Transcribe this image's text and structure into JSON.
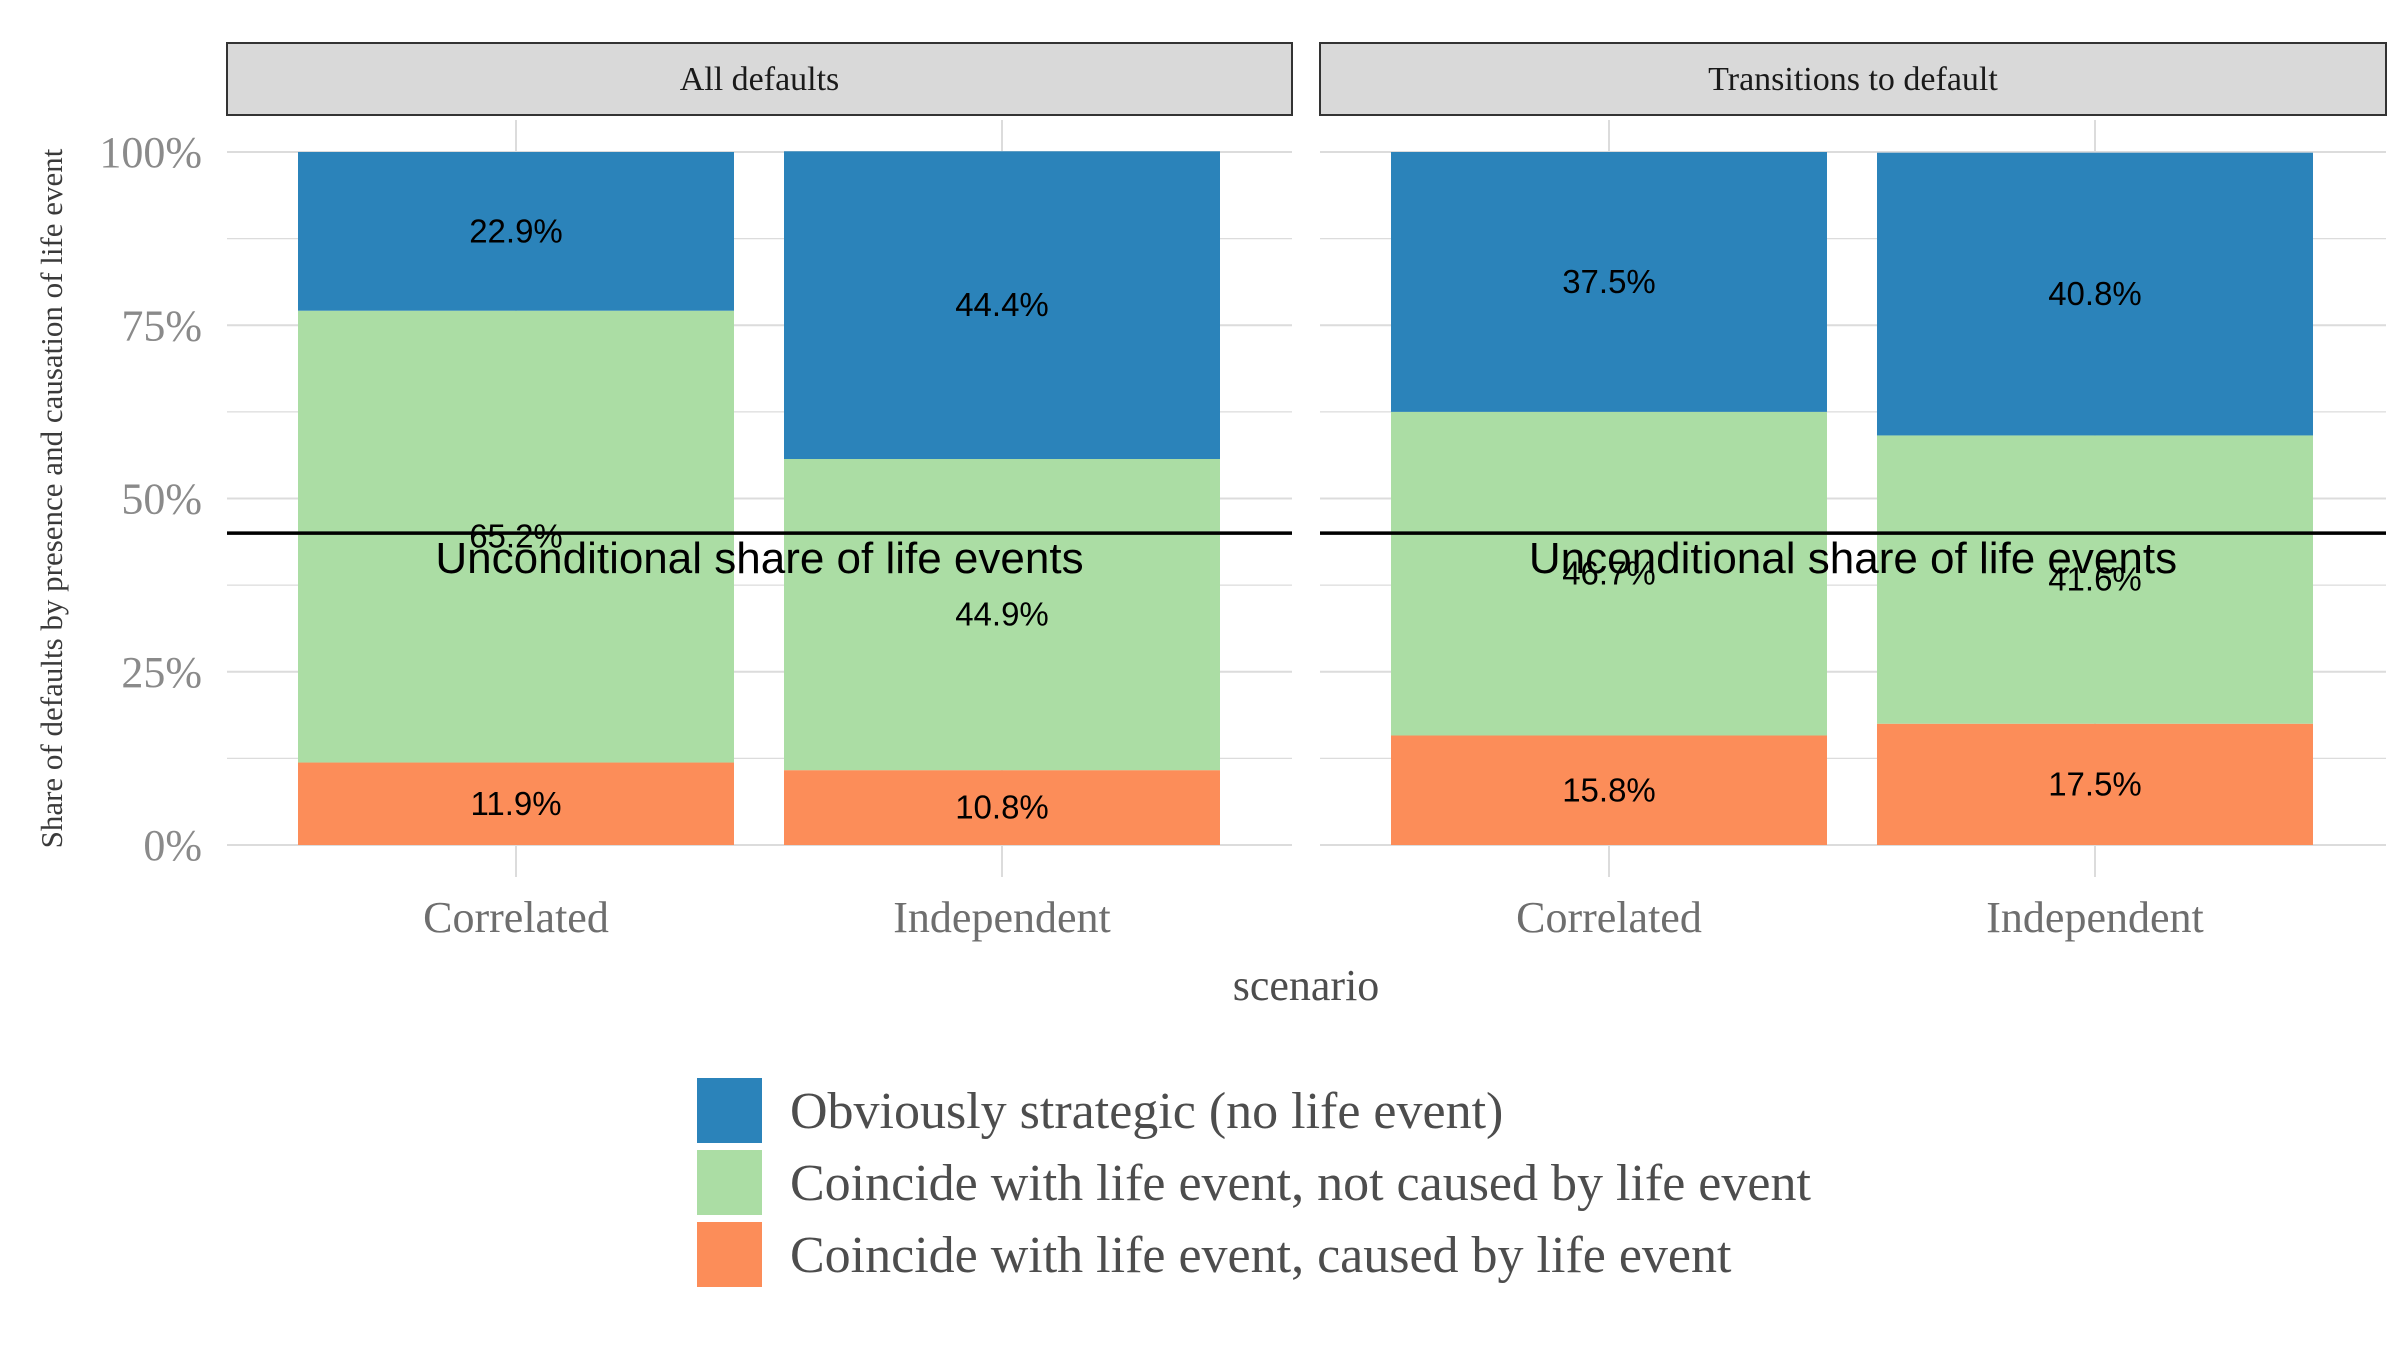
{
  "chart_data": {
    "type": "bar",
    "stacked": true,
    "facets": [
      "All defaults",
      "Transitions to default"
    ],
    "categories": [
      "Correlated",
      "Independent"
    ],
    "xlabel": "scenario",
    "ylabel": "Share of defaults by presence and causation of life event",
    "ylim": [
      0,
      1
    ],
    "yticks": [
      "0%",
      "25%",
      "50%",
      "75%",
      "100%"
    ],
    "series": [
      {
        "name": "Coincide with life event, caused by life event",
        "color": "#fc8d59",
        "values": {
          "All defaults": [
            0.119,
            0.108
          ],
          "Transitions to default": [
            0.158,
            0.175
          ]
        },
        "labels": {
          "All defaults": [
            "11.9%",
            "10.8%"
          ],
          "Transitions to default": [
            "15.8%",
            "17.5%"
          ]
        }
      },
      {
        "name": "Coincide with life event, not caused by life event",
        "color": "#abdda4",
        "values": {
          "All defaults": [
            0.652,
            0.449
          ],
          "Transitions to default": [
            0.467,
            0.416
          ]
        },
        "labels": {
          "All defaults": [
            "65.2%",
            "44.9%"
          ],
          "Transitions to default": [
            "46.7%",
            "41.6%"
          ]
        }
      },
      {
        "name": "Obviously strategic (no life event)",
        "color": "#2b83ba",
        "values": {
          "All defaults": [
            0.229,
            0.444
          ],
          "Transitions to default": [
            0.375,
            0.408
          ]
        },
        "labels": {
          "All defaults": [
            "22.9%",
            "44.4%"
          ],
          "Transitions to default": [
            "37.5%",
            "40.8%"
          ]
        }
      }
    ],
    "reference_line": {
      "value": 0.45,
      "label": "Unconditional share of life events"
    },
    "legend": {
      "position": "bottom",
      "items": [
        "Obviously strategic (no life event)",
        "Coincide with life event, not caused by life event",
        "Coincide with life event, caused by life event"
      ]
    },
    "grid": true
  }
}
